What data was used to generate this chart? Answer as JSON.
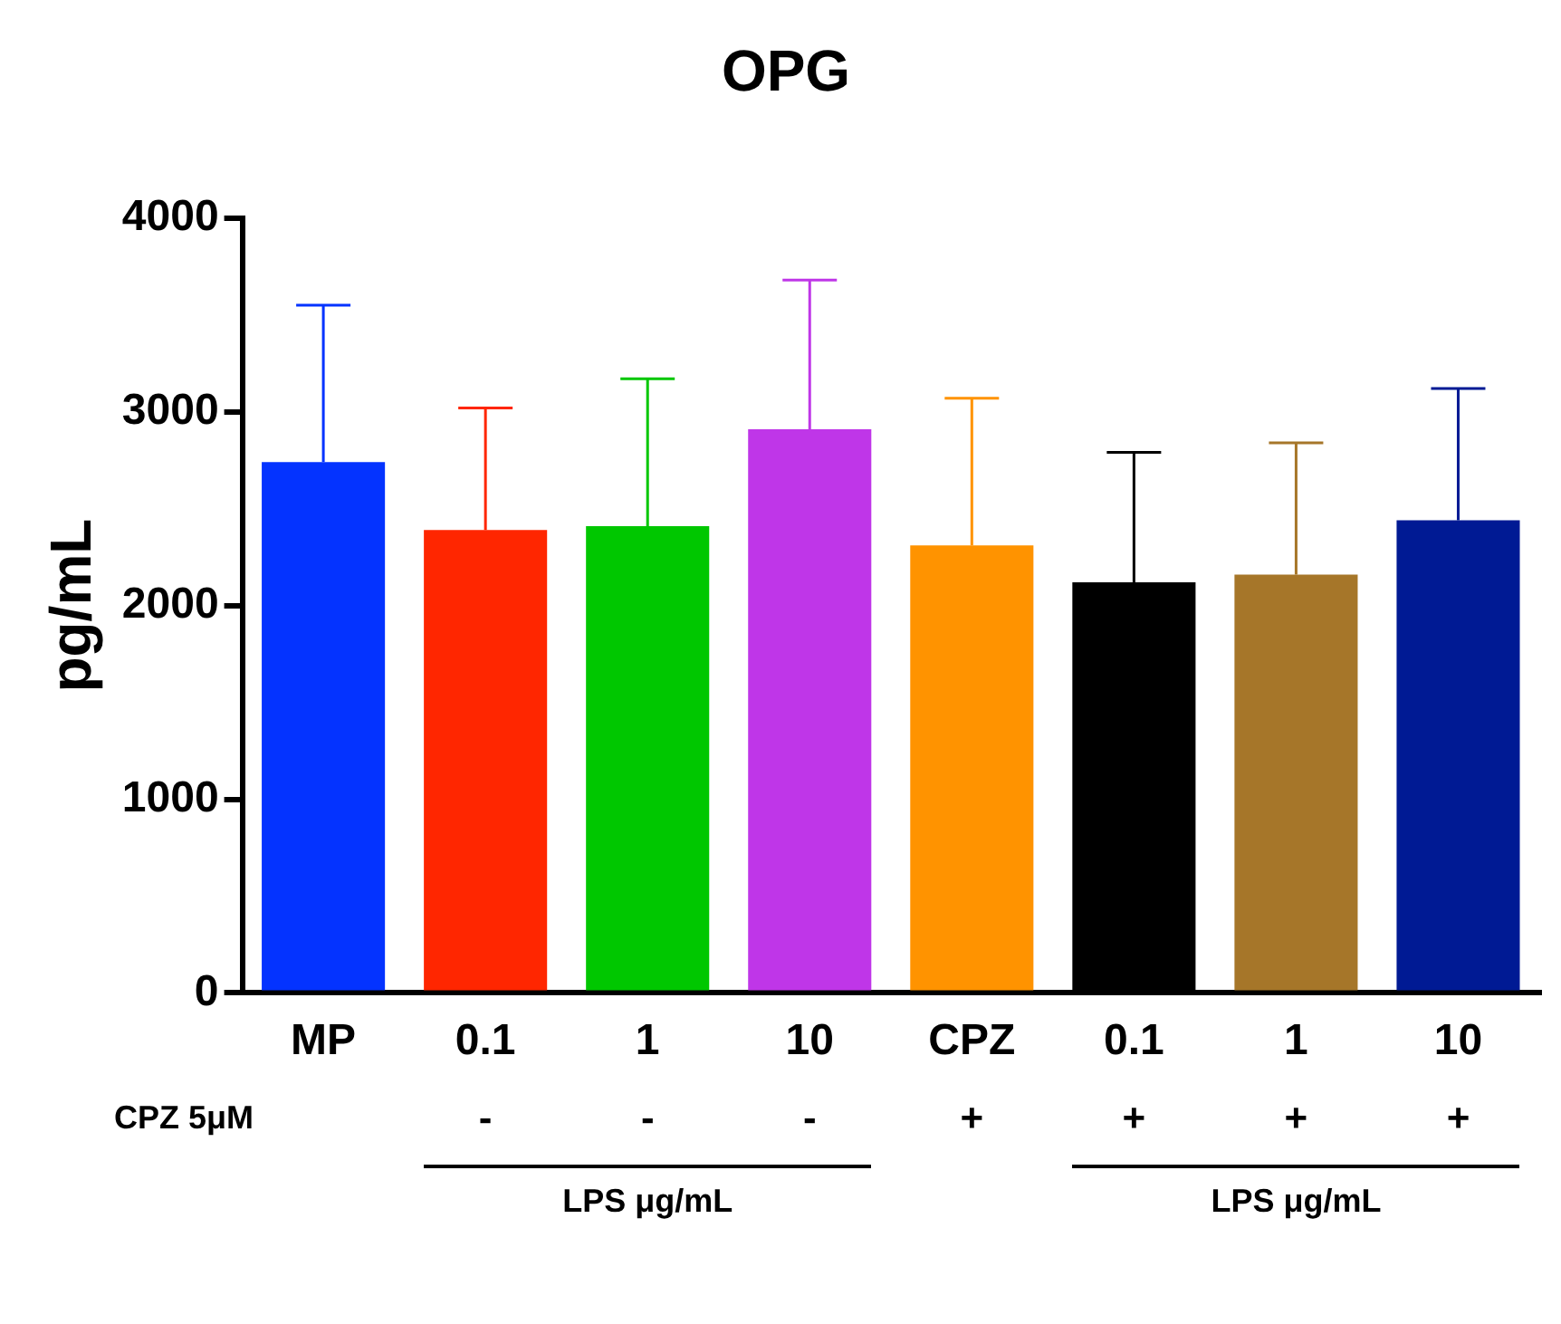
{
  "chart_data": {
    "type": "bar",
    "title": "OPG",
    "ylabel": "pg/mL",
    "categories": [
      "MP",
      "0.1",
      "1",
      "10",
      "CPZ",
      "0.1",
      "1",
      "10"
    ],
    "values": [
      2740,
      2390,
      2410,
      2910,
      2310,
      2120,
      2160,
      2440
    ],
    "colors": [
      "#0433ff",
      "#ff2600",
      "#00c700",
      "#bf36e8",
      "#ff9300",
      "#000000",
      "#a67629",
      "#001a94"
    ],
    "errors": [
      [
        2740,
        3550
      ],
      [
        2390,
        3020
      ],
      [
        2410,
        3170
      ],
      [
        2910,
        3680
      ],
      [
        2310,
        3070
      ],
      [
        2120,
        2790
      ],
      [
        2160,
        2840
      ],
      [
        2440,
        3120
      ]
    ],
    "ylim": [
      0,
      4000
    ],
    "yticks": [
      0,
      1000,
      2000,
      3000,
      4000
    ],
    "grid": false,
    "legend": false,
    "annotations": [
      "CPZ 5μM",
      "-",
      "-",
      "-",
      "+",
      "+",
      "+",
      "+",
      "LPS μg/mL",
      "LPS μg/mL"
    ]
  }
}
